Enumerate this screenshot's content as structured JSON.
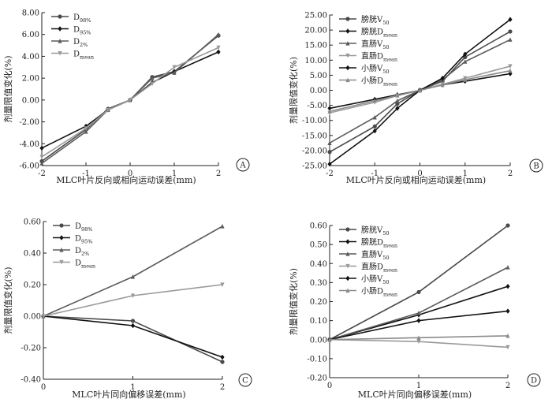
{
  "chart_data": [
    {
      "panel": "A",
      "type": "line",
      "xlabel": "MLC叶片反向或相向运动误差(mm)",
      "ylabel": "剂量限值变化(%)",
      "xlim": [
        -2,
        2
      ],
      "ylim": [
        -6,
        8
      ],
      "xticks": [
        -2,
        -1,
        0,
        1,
        2
      ],
      "xtick_labels": [
        "-2",
        "-1",
        "0",
        "1",
        "2"
      ],
      "yticks": [
        -6,
        -4,
        -2,
        0,
        2,
        4,
        6,
        8
      ],
      "ytick_labels": [
        "-6.00",
        "-4.00",
        "-2.00",
        "0.00",
        "2.00",
        "4.00",
        "6.00",
        "8.00"
      ],
      "legend_position": "top-left",
      "series": [
        {
          "name": "D98%",
          "name_main": "D",
          "name_sub": "98%",
          "color": "#4a4a4a",
          "marker": "circle",
          "x": [
            -2,
            -1,
            -0.5,
            0,
            0.5,
            1,
            2
          ],
          "y": [
            -5.6,
            -2.7,
            -0.8,
            0,
            2.1,
            2.6,
            5.9
          ]
        },
        {
          "name": "D95%",
          "name_main": "D",
          "name_sub": "95%",
          "color": "#111111",
          "marker": "diamond",
          "x": [
            -2,
            -1,
            -0.5,
            0,
            0.5,
            1,
            2
          ],
          "y": [
            -4.4,
            -2.4,
            -0.9,
            0,
            1.6,
            2.6,
            4.4
          ]
        },
        {
          "name": "D2%",
          "name_main": "D",
          "name_sub": "2%",
          "color": "#5c5c5c",
          "marker": "triangle",
          "x": [
            -2,
            -1,
            -0.5,
            0,
            0.5,
            1,
            2
          ],
          "y": [
            -5.8,
            -2.9,
            -0.9,
            0,
            2.0,
            2.5,
            6.0
          ]
        },
        {
          "name": "Dmean",
          "name_main": "D",
          "name_sub": "mean",
          "color": "#9a9a9a",
          "marker": "triangle-down",
          "x": [
            -2,
            -1,
            -0.5,
            0,
            0.5,
            1,
            2
          ],
          "y": [
            -5.2,
            -2.6,
            -0.9,
            0,
            1.5,
            3.0,
            4.8
          ]
        }
      ]
    },
    {
      "panel": "B",
      "type": "line",
      "xlabel": "MLC叶片反向或相向运动误差(mm)",
      "ylabel": "剂量限值变化(%)",
      "xlim": [
        -2,
        2
      ],
      "ylim": [
        -25,
        25
      ],
      "xticks": [
        -2,
        -1,
        0,
        1,
        2
      ],
      "xtick_labels": [
        "-2",
        "-1",
        "0",
        "1",
        "2"
      ],
      "yticks": [
        -25,
        -20,
        -15,
        -10,
        -5,
        0,
        5,
        10,
        15,
        20,
        25
      ],
      "ytick_labels": [
        "-25.00",
        "-20.00",
        "-15.00",
        "-10.00",
        "-5.00",
        "0.00",
        "5.00",
        "10.00",
        "15.00",
        "20.00",
        "25.00"
      ],
      "legend_position": "top-left",
      "series": [
        {
          "name": "膀胱V50",
          "name_main": "膀胱V",
          "name_sub": "50",
          "color": "#4a4a4a",
          "marker": "circle",
          "x": [
            -2,
            -1,
            -0.5,
            0,
            0.5,
            1,
            2
          ],
          "y": [
            -20.5,
            -12.0,
            -4.5,
            0,
            3.0,
            11.0,
            19.5
          ]
        },
        {
          "name": "膀胱Dmean",
          "name_main": "膀胱D",
          "name_sub": "mean",
          "color": "#111111",
          "marker": "diamond",
          "x": [
            -2,
            -1,
            -0.5,
            0,
            0.5,
            1,
            2
          ],
          "y": [
            -6.0,
            -3.0,
            -1.5,
            0,
            1.8,
            3.0,
            5.5
          ]
        },
        {
          "name": "直肠V50",
          "name_main": "直肠V",
          "name_sub": "50",
          "color": "#5c5c5c",
          "marker": "triangle",
          "x": [
            -2,
            -1,
            -0.5,
            0,
            0.5,
            1,
            2
          ],
          "y": [
            -17.5,
            -9.0,
            -3.5,
            0,
            3.5,
            9.5,
            16.8
          ]
        },
        {
          "name": "直肠Dmean",
          "name_main": "直肠D",
          "name_sub": "mean",
          "color": "#9a9a9a",
          "marker": "triangle-down",
          "x": [
            -2,
            -1,
            -0.5,
            0,
            0.5,
            1,
            2
          ],
          "y": [
            -7.5,
            -4.0,
            -1.8,
            0,
            2.0,
            4.0,
            8.0
          ]
        },
        {
          "name": "小肠V50",
          "name_main": "小肠V",
          "name_sub": "50",
          "color": "#111111",
          "marker": "diamond",
          "x": [
            -2,
            -1,
            -0.5,
            0,
            0.5,
            1,
            2
          ],
          "y": [
            -24.5,
            -13.5,
            -6.0,
            0,
            4.0,
            12.0,
            23.5
          ]
        },
        {
          "name": "小肠Dmean",
          "name_main": "小肠D",
          "name_sub": "mean",
          "color": "#8a8a8a",
          "marker": "triangle",
          "x": [
            -2,
            -1,
            -0.5,
            0,
            0.5,
            1,
            2
          ],
          "y": [
            -7.0,
            -3.5,
            -1.7,
            0,
            1.8,
            3.5,
            6.5
          ]
        }
      ]
    },
    {
      "panel": "C",
      "type": "line",
      "xlabel": "MLC叶片同向偏移误差(mm)",
      "ylabel": "剂量限值变化(%)",
      "xlim": [
        0,
        2
      ],
      "ylim": [
        -0.4,
        0.6
      ],
      "xticks": [
        0,
        1,
        2
      ],
      "xtick_labels": [
        "0",
        "1",
        "2"
      ],
      "yticks": [
        -0.4,
        -0.2,
        0,
        0.2,
        0.4,
        0.6
      ],
      "ytick_labels": [
        "-0.40",
        "-0.20",
        "0.00",
        "0.20",
        "0.40",
        "0.60"
      ],
      "legend_position": "top-left",
      "series": [
        {
          "name": "D98%",
          "name_main": "D",
          "name_sub": "98%",
          "color": "#4a4a4a",
          "marker": "circle",
          "x": [
            0,
            1,
            2
          ],
          "y": [
            0,
            -0.03,
            -0.29
          ]
        },
        {
          "name": "D95%",
          "name_main": "D",
          "name_sub": "95%",
          "color": "#111111",
          "marker": "diamond",
          "x": [
            0,
            1,
            2
          ],
          "y": [
            0,
            -0.06,
            -0.26
          ]
        },
        {
          "name": "D2%",
          "name_main": "D",
          "name_sub": "2%",
          "color": "#5c5c5c",
          "marker": "triangle",
          "x": [
            0,
            1,
            2
          ],
          "y": [
            0,
            0.25,
            0.57
          ]
        },
        {
          "name": "Dmean",
          "name_main": "D",
          "name_sub": "mean",
          "color": "#9a9a9a",
          "marker": "triangle-down",
          "x": [
            0,
            1,
            2
          ],
          "y": [
            0,
            0.13,
            0.2
          ]
        }
      ]
    },
    {
      "panel": "D",
      "type": "line",
      "xlabel": "MLC叶片同向偏移误差(mm)",
      "ylabel": "剂量限值变化(%)",
      "xlim": [
        0,
        2
      ],
      "ylim": [
        -0.2,
        0.6
      ],
      "xticks": [
        0,
        1,
        2
      ],
      "xtick_labels": [
        "0",
        "1",
        "2"
      ],
      "yticks": [
        -0.2,
        -0.1,
        0,
        0.1,
        0.2,
        0.3,
        0.4,
        0.5,
        0.6
      ],
      "ytick_labels": [
        "-0.20",
        "-0.10",
        "0.00",
        "0.10",
        "0.20",
        "0.30",
        "0.40",
        "0.50",
        "0.60"
      ],
      "legend_position": "top-left",
      "series": [
        {
          "name": "膀胱V50",
          "name_main": "膀胱V",
          "name_sub": "50",
          "color": "#4a4a4a",
          "marker": "circle",
          "x": [
            0,
            1,
            2
          ],
          "y": [
            0,
            0.25,
            0.6
          ]
        },
        {
          "name": "膀胱Dmean",
          "name_main": "膀胱D",
          "name_sub": "mean",
          "color": "#111111",
          "marker": "diamond",
          "x": [
            0,
            1,
            2
          ],
          "y": [
            0,
            0.13,
            0.28
          ]
        },
        {
          "name": "直肠V50",
          "name_main": "直肠V",
          "name_sub": "50",
          "color": "#5c5c5c",
          "marker": "triangle",
          "x": [
            0,
            1,
            2
          ],
          "y": [
            0,
            0.14,
            0.38
          ]
        },
        {
          "name": "直肠Dmean",
          "name_main": "直肠D",
          "name_sub": "mean",
          "color": "#9a9a9a",
          "marker": "triangle-down",
          "x": [
            0,
            1,
            2
          ],
          "y": [
            0,
            -0.01,
            -0.04
          ]
        },
        {
          "name": "小肠V50",
          "name_main": "小肠V",
          "name_sub": "50",
          "color": "#111111",
          "marker": "diamond",
          "x": [
            0,
            1,
            2
          ],
          "y": [
            0,
            0.1,
            0.15
          ]
        },
        {
          "name": "小肠Dmean",
          "name_main": "小肠D",
          "name_sub": "mean",
          "color": "#8a8a8a",
          "marker": "triangle",
          "x": [
            0,
            1,
            2
          ],
          "y": [
            0,
            0.01,
            0.02
          ]
        }
      ]
    }
  ]
}
